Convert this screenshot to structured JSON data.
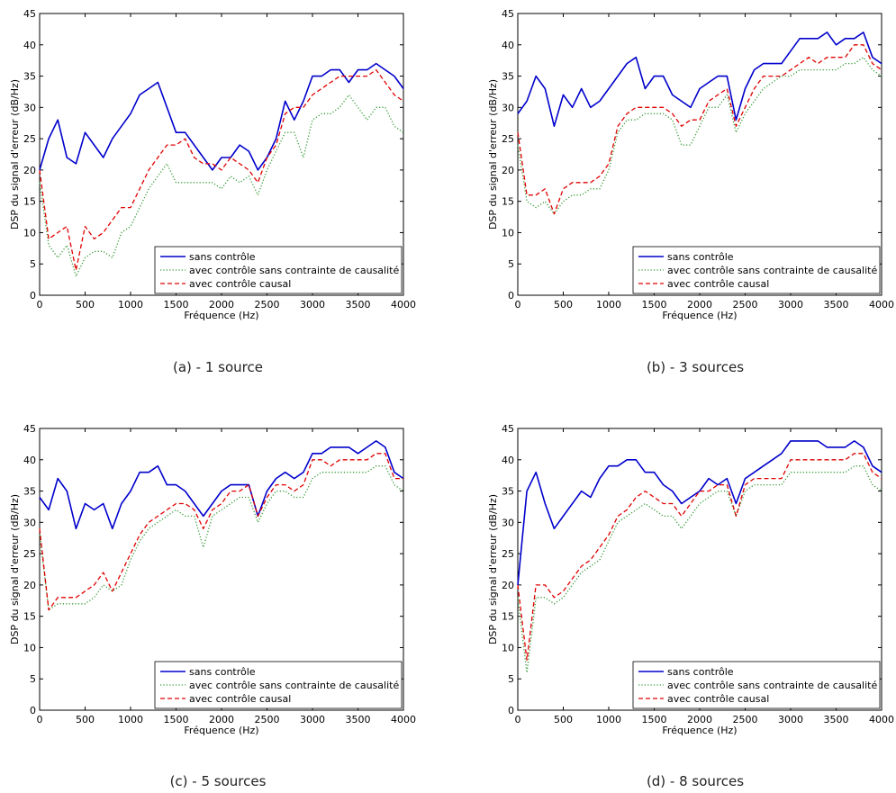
{
  "figure": {
    "legend_position": "bottom-right"
  },
  "chart_data": [
    {
      "type": "line",
      "caption": "(a) - 1 source",
      "xlabel": "Fréquence (Hz)",
      "ylabel": "DSP du signal d'erreur (dB/Hz)",
      "xlim": [
        0,
        4000
      ],
      "ylim": [
        0,
        45
      ],
      "xticks": [
        "0",
        "500",
        "1000",
        "1500",
        "2000",
        "2500",
        "3000",
        "3500",
        "4000"
      ],
      "yticks": [
        "0",
        "5",
        "10",
        "15",
        "20",
        "25",
        "30",
        "35",
        "40",
        "45"
      ],
      "grid": false,
      "x": [
        0,
        100,
        200,
        300,
        400,
        500,
        600,
        700,
        800,
        900,
        1000,
        1100,
        1200,
        1300,
        1400,
        1500,
        1600,
        1700,
        1800,
        1900,
        2000,
        2100,
        2200,
        2300,
        2400,
        2500,
        2600,
        2700,
        2800,
        2900,
        3000,
        3100,
        3200,
        3300,
        3400,
        3500,
        3600,
        3700,
        3800,
        3900,
        4000
      ],
      "series": [
        {
          "name": "sans contrôle",
          "color": "#0000cc",
          "dash": "solid",
          "values": [
            20,
            25,
            28,
            22,
            21,
            26,
            24,
            22,
            25,
            27,
            29,
            32,
            33,
            34,
            30,
            26,
            26,
            24,
            22,
            20,
            22,
            22,
            24,
            23,
            20,
            22,
            25,
            31,
            28,
            31,
            35,
            35,
            36,
            36,
            34,
            36,
            36,
            37,
            36,
            35,
            33
          ]
        },
        {
          "name": "avec contrôle sans contrainte de causalité",
          "color": "#339933",
          "dash": "dotted",
          "values": [
            18,
            8,
            6,
            8,
            3,
            6,
            7,
            7,
            6,
            10,
            11,
            14,
            17,
            19,
            21,
            18,
            18,
            18,
            18,
            18,
            17,
            19,
            18,
            19,
            16,
            20,
            23,
            26,
            26,
            22,
            28,
            29,
            29,
            30,
            32,
            30,
            28,
            30,
            30,
            27,
            26
          ]
        },
        {
          "name": "avec contrôle causal",
          "color": "#e00000",
          "dash": "dashed",
          "values": [
            20,
            9,
            10,
            11,
            4,
            11,
            9,
            10,
            12,
            14,
            14,
            17,
            20,
            22,
            24,
            24,
            25,
            22,
            21,
            21,
            20,
            22,
            21,
            20,
            18,
            22,
            24,
            29,
            30,
            30,
            32,
            33,
            34,
            35,
            35,
            35,
            35,
            36,
            34,
            32,
            31
          ]
        }
      ]
    },
    {
      "type": "line",
      "caption": "(b) - 3 sources",
      "xlabel": "Fréquence (Hz)",
      "ylabel": "DSP du signal d'erreur (dB/Hz)",
      "xlim": [
        0,
        4000
      ],
      "ylim": [
        0,
        45
      ],
      "xticks": [
        "0",
        "500",
        "1000",
        "1500",
        "2000",
        "2500",
        "3000",
        "3500",
        "4000"
      ],
      "yticks": [
        "0",
        "5",
        "10",
        "15",
        "20",
        "25",
        "30",
        "35",
        "40",
        "45"
      ],
      "grid": false,
      "x": [
        0,
        100,
        200,
        300,
        400,
        500,
        600,
        700,
        800,
        900,
        1000,
        1100,
        1200,
        1300,
        1400,
        1500,
        1600,
        1700,
        1800,
        1900,
        2000,
        2100,
        2200,
        2300,
        2400,
        2500,
        2600,
        2700,
        2800,
        2900,
        3000,
        3100,
        3200,
        3300,
        3400,
        3500,
        3600,
        3700,
        3800,
        3900,
        4000
      ],
      "series": [
        {
          "name": "sans contrôle",
          "color": "#0000cc",
          "dash": "solid",
          "values": [
            29,
            31,
            35,
            33,
            27,
            32,
            30,
            33,
            30,
            31,
            33,
            35,
            37,
            38,
            33,
            35,
            35,
            32,
            31,
            30,
            33,
            34,
            35,
            35,
            28,
            33,
            36,
            37,
            37,
            37,
            39,
            41,
            41,
            41,
            42,
            40,
            41,
            41,
            42,
            38,
            37
          ]
        },
        {
          "name": "avec contrôle sans contrainte de causalité",
          "color": "#339933",
          "dash": "dotted",
          "values": [
            24,
            15,
            14,
            15,
            13,
            15,
            16,
            16,
            17,
            17,
            20,
            26,
            28,
            28,
            29,
            29,
            29,
            28,
            24,
            24,
            27,
            30,
            30,
            32,
            26,
            29,
            31,
            33,
            34,
            35,
            35,
            36,
            36,
            36,
            36,
            36,
            37,
            37,
            38,
            36,
            35
          ]
        },
        {
          "name": "avec contrôle causal",
          "color": "#e00000",
          "dash": "dashed",
          "values": [
            26,
            16,
            16,
            17,
            13,
            17,
            18,
            18,
            18,
            19,
            21,
            27,
            29,
            30,
            30,
            30,
            30,
            29,
            27,
            28,
            28,
            31,
            32,
            33,
            27,
            30,
            33,
            35,
            35,
            35,
            36,
            37,
            38,
            37,
            38,
            38,
            38,
            40,
            40,
            37,
            36
          ]
        }
      ]
    },
    {
      "type": "line",
      "caption": "(c) - 5 sources",
      "xlabel": "Fréquence (Hz)",
      "ylabel": "DSP du signal d'erreur (dB/Hz)",
      "xlim": [
        0,
        4000
      ],
      "ylim": [
        0,
        45
      ],
      "xticks": [
        "0",
        "500",
        "1000",
        "1500",
        "2000",
        "2500",
        "3000",
        "3500",
        "4000"
      ],
      "yticks": [
        "0",
        "5",
        "10",
        "15",
        "20",
        "25",
        "30",
        "35",
        "40",
        "45"
      ],
      "grid": false,
      "x": [
        0,
        100,
        200,
        300,
        400,
        500,
        600,
        700,
        800,
        900,
        1000,
        1100,
        1200,
        1300,
        1400,
        1500,
        1600,
        1700,
        1800,
        1900,
        2000,
        2100,
        2200,
        2300,
        2400,
        2500,
        2600,
        2700,
        2800,
        2900,
        3000,
        3100,
        3200,
        3300,
        3400,
        3500,
        3600,
        3700,
        3800,
        3900,
        4000
      ],
      "series": [
        {
          "name": "sans contrôle",
          "color": "#0000cc",
          "dash": "solid",
          "values": [
            34,
            32,
            37,
            35,
            29,
            33,
            32,
            33,
            29,
            33,
            35,
            38,
            38,
            39,
            36,
            36,
            35,
            33,
            31,
            33,
            35,
            36,
            36,
            36,
            31,
            35,
            37,
            38,
            37,
            38,
            41,
            41,
            42,
            42,
            42,
            41,
            42,
            43,
            42,
            38,
            37
          ]
        },
        {
          "name": "avec contrôle sans contrainte de causalité",
          "color": "#339933",
          "dash": "dotted",
          "values": [
            28,
            16,
            17,
            17,
            17,
            17,
            18,
            20,
            19,
            20,
            24,
            27,
            29,
            30,
            31,
            32,
            31,
            31,
            26,
            31,
            32,
            33,
            34,
            34,
            30,
            33,
            35,
            35,
            34,
            34,
            37,
            38,
            38,
            38,
            38,
            38,
            38,
            39,
            39,
            36,
            35
          ]
        },
        {
          "name": "avec contrôle causal",
          "color": "#e00000",
          "dash": "dashed",
          "values": [
            29,
            16,
            18,
            18,
            18,
            19,
            20,
            22,
            19,
            22,
            25,
            28,
            30,
            31,
            32,
            33,
            33,
            32,
            29,
            32,
            33,
            35,
            35,
            36,
            31,
            34,
            36,
            36,
            35,
            36,
            40,
            40,
            39,
            40,
            40,
            40,
            40,
            41,
            41,
            37,
            37
          ]
        }
      ]
    },
    {
      "type": "line",
      "caption": "(d) - 8 sources",
      "xlabel": "Fréquence (Hz)",
      "ylabel": "DSP du signal d'erreur (dB/Hz)",
      "xlim": [
        0,
        4000
      ],
      "ylim": [
        0,
        45
      ],
      "xticks": [
        "0",
        "500",
        "1000",
        "1500",
        "2000",
        "2500",
        "3000",
        "3500",
        "4000"
      ],
      "yticks": [
        "0",
        "5",
        "10",
        "15",
        "20",
        "25",
        "30",
        "35",
        "40",
        "45"
      ],
      "grid": false,
      "x": [
        0,
        100,
        200,
        300,
        400,
        500,
        600,
        700,
        800,
        900,
        1000,
        1100,
        1200,
        1300,
        1400,
        1500,
        1600,
        1700,
        1800,
        1900,
        2000,
        2100,
        2200,
        2300,
        2400,
        2500,
        2600,
        2700,
        2800,
        2900,
        3000,
        3100,
        3200,
        3300,
        3400,
        3500,
        3600,
        3700,
        3800,
        3900,
        4000
      ],
      "series": [
        {
          "name": "sans contrôle",
          "color": "#0000cc",
          "dash": "solid",
          "values": [
            20,
            35,
            38,
            33,
            29,
            31,
            33,
            35,
            34,
            37,
            39,
            39,
            40,
            40,
            38,
            38,
            36,
            35,
            33,
            34,
            35,
            37,
            36,
            37,
            33,
            37,
            38,
            39,
            40,
            41,
            43,
            43,
            43,
            43,
            42,
            42,
            42,
            43,
            42,
            39,
            38
          ]
        },
        {
          "name": "avec contrôle sans contrainte de causalité",
          "color": "#339933",
          "dash": "dotted",
          "values": [
            18,
            6,
            18,
            18,
            17,
            18,
            20,
            22,
            23,
            24,
            27,
            30,
            31,
            32,
            33,
            32,
            31,
            31,
            29,
            31,
            33,
            34,
            35,
            35,
            31,
            35,
            36,
            36,
            36,
            36,
            38,
            38,
            38,
            38,
            38,
            38,
            38,
            39,
            39,
            36,
            35
          ]
        },
        {
          "name": "avec contrôle causal",
          "color": "#e00000",
          "dash": "dashed",
          "values": [
            20,
            8,
            20,
            20,
            18,
            19,
            21,
            23,
            24,
            26,
            28,
            31,
            32,
            34,
            35,
            34,
            33,
            33,
            31,
            33,
            35,
            35,
            36,
            36,
            31,
            36,
            37,
            37,
            37,
            37,
            40,
            40,
            40,
            40,
            40,
            40,
            40,
            41,
            41,
            38,
            37
          ]
        }
      ]
    }
  ]
}
